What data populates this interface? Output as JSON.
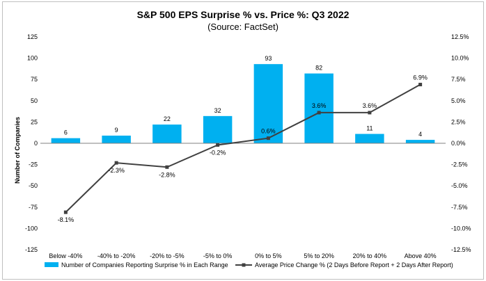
{
  "chart_data": {
    "type": "bar+line",
    "title": "S&P 500 EPS Surprise % vs. Price %: Q3 2022",
    "subtitle": "(Source: FactSet)",
    "categories": [
      "Below -40%",
      "-40% to -20%",
      "-20% to -5%",
      "-5% to 0%",
      "0% to 5%",
      "5% to 20%",
      "20% to 40%",
      "Above 40%"
    ],
    "ylabel": "Number of Companies",
    "ylim": [
      -125,
      125
    ],
    "yticks": [
      "125",
      "100",
      "75",
      "50",
      "25",
      "0",
      "-25",
      "-50",
      "-75",
      "-100",
      "-125"
    ],
    "y2lim": [
      -12.5,
      12.5
    ],
    "y2ticks": [
      "12.5%",
      "10.0%",
      "7.5%",
      "5.0%",
      "2.5%",
      "0.0%",
      "-2.5%",
      "-5.0%",
      "-7.5%",
      "-10.0%",
      "-12.5%"
    ],
    "grid": false,
    "legend_position": "bottom",
    "series": [
      {
        "name": "Number of Companies Reporting Surprise % in Each Range",
        "kind": "bar",
        "axis": "left",
        "color": "#00b0f0",
        "values": [
          6,
          9,
          22,
          32,
          93,
          82,
          11,
          4
        ],
        "labels": [
          "6",
          "9",
          "22",
          "32",
          "93",
          "82",
          "11",
          "4"
        ]
      },
      {
        "name": "Average Price Change % (2 Days Before Report + 2 Days After Report)",
        "kind": "line",
        "axis": "right",
        "color": "#404040",
        "values": [
          -8.1,
          -2.3,
          -2.8,
          -0.2,
          0.6,
          3.6,
          3.6,
          6.9
        ],
        "labels": [
          "-8.1%",
          "-2.3%",
          "-2.8%",
          "-0.2%",
          "0.6%",
          "3.6%",
          "3.6%",
          "6.9%"
        ]
      }
    ]
  }
}
